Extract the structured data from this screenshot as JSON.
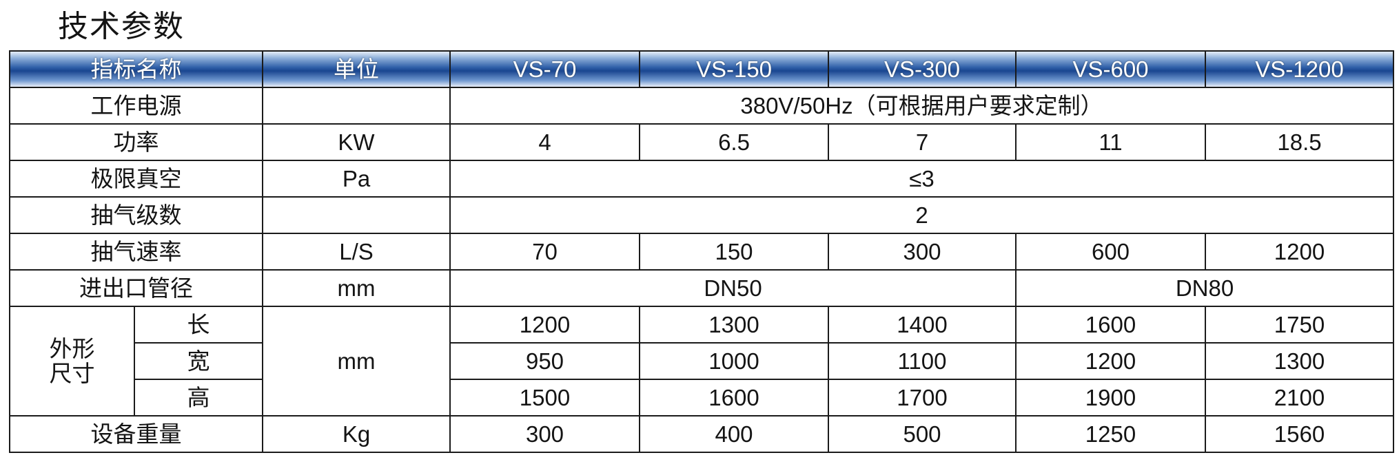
{
  "title": "技术参数",
  "header": [
    "指标名称",
    "单位",
    "VS-70",
    "VS-150",
    "VS-300",
    "VS-600",
    "VS-1200"
  ],
  "rows": [
    {
      "name": "工作电源",
      "unit": "",
      "values": [
        "380V/50Hz（可根据用户要求定制）"
      ]
    },
    {
      "name": "功率",
      "unit": "KW",
      "values": [
        "4",
        "6.5",
        "7",
        "11",
        "18.5"
      ]
    },
    {
      "name": "极限真空",
      "unit": "Pa",
      "values": [
        "≤3"
      ]
    },
    {
      "name": "抽气级数",
      "unit": "",
      "values": [
        "2"
      ]
    },
    {
      "name": "抽气速率",
      "unit": "L/S",
      "values": [
        "70",
        "150",
        "300",
        "600",
        "1200"
      ]
    },
    {
      "name": "进出口管径",
      "unit": "mm",
      "values": [
        "DN50",
        "DN80"
      ]
    }
  ],
  "dimensions": {
    "name_lines": [
      "外形",
      "尺寸"
    ],
    "unit": "mm",
    "sub": [
      {
        "name": "长",
        "values": [
          "1200",
          "1300",
          "1400",
          "1600",
          "1750"
        ]
      },
      {
        "name": "宽",
        "values": [
          "950",
          "1000",
          "1100",
          "1200",
          "1300"
        ]
      },
      {
        "name": "高",
        "values": [
          "1500",
          "1600",
          "1700",
          "1900",
          "2100"
        ]
      }
    ]
  },
  "weight": {
    "name": "设备重量",
    "unit": "Kg",
    "values": [
      "300",
      "400",
      "500",
      "1250",
      "1560"
    ]
  },
  "colors": {
    "header_dark": "#1a4690",
    "header_light": "#e6eef8",
    "text": "#141414"
  }
}
